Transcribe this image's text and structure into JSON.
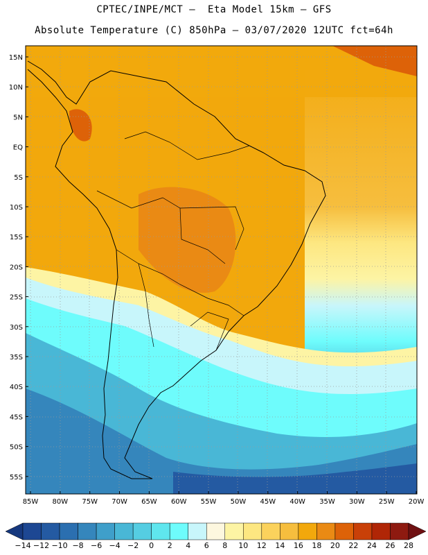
{
  "header": {
    "line1": "CPTEC/INPE/MCT –  Eta Model 15km – GFS",
    "line2": "Absolute Temperature (C) 850hPa – 03/07/2020 12UTC fct=64h"
  },
  "map": {
    "lat_labels": [
      "15N",
      "10N",
      "5N",
      "EQ",
      "5S",
      "10S",
      "15S",
      "20S",
      "25S",
      "30S",
      "35S",
      "40S",
      "45S",
      "50S",
      "55S"
    ],
    "lon_labels": [
      "85W",
      "80W",
      "75W",
      "70W",
      "65W",
      "60W",
      "55W",
      "50W",
      "45W",
      "40W",
      "35W",
      "30W",
      "25W",
      "20W"
    ],
    "extent": {
      "lon": [
        -86,
        -20
      ],
      "lat": [
        -58,
        17
      ]
    }
  },
  "colorbar": {
    "labels": [
      "-14",
      "-12",
      "-10",
      "-8",
      "-6",
      "-4",
      "-2",
      "0",
      "2",
      "4",
      "6",
      "8",
      "10",
      "12",
      "14",
      "16",
      "18",
      "20",
      "22",
      "24",
      "26",
      "28"
    ],
    "colors": [
      "#16387e",
      "#1d4793",
      "#245aa2",
      "#2b6fb0",
      "#3586bc",
      "#3f9fca",
      "#49b7d6",
      "#55cde2",
      "#5fe6ee",
      "#6efcfc",
      "#c8f6fb",
      "#fdf7df",
      "#fdf4a4",
      "#fde781",
      "#fbd25c",
      "#f6be3e",
      "#f2a80c",
      "#ea8a14",
      "#dd6208",
      "#c94008",
      "#b02606",
      "#8e1a10",
      "#6f1012"
    ]
  }
}
